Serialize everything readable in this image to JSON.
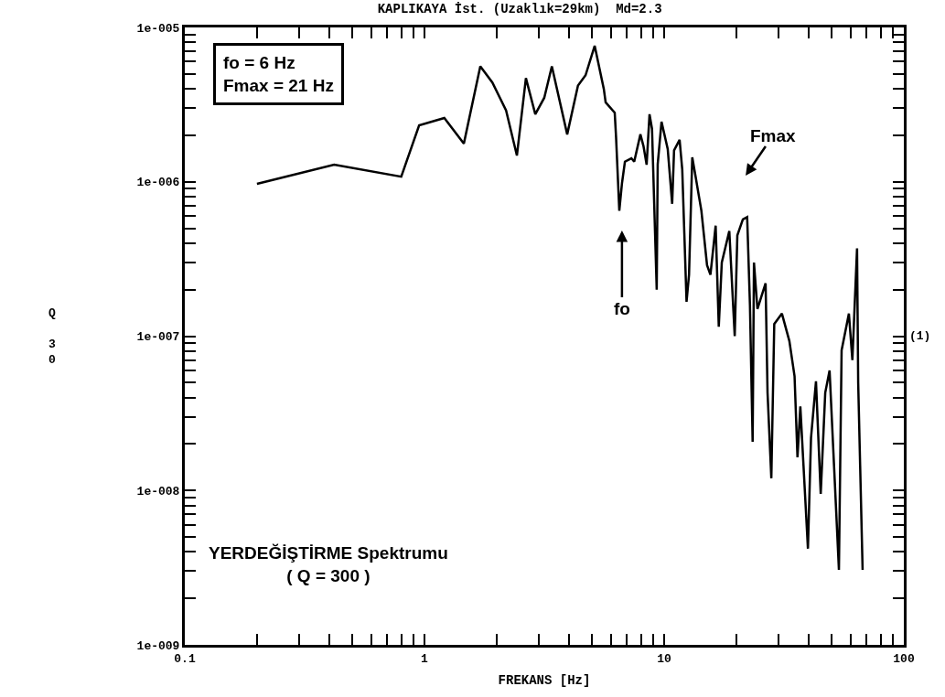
{
  "chart_data": {
    "type": "line",
    "title": "KAPLIKAYA İst. (Uzaklık=29km)  Md=2.3",
    "xlabel": "FREKANS [Hz]",
    "ylabel": "Q 30",
    "y2label": "(1)",
    "log": "xy",
    "grid": false,
    "marker": "none",
    "line_style": "solid",
    "xlim": [
      0.1,
      100
    ],
    "ylim": [
      1e-09,
      1e-05
    ],
    "xticks": [
      0.1,
      {
        "value": 0.2,
        "label": null
      },
      {
        "value": 0.3,
        "label": null
      },
      {
        "value": 0.4,
        "label": null
      },
      {
        "value": 0.5,
        "label": null
      },
      {
        "value": 0.6,
        "label": null
      },
      {
        "value": 0.7,
        "label": null
      },
      {
        "value": 0.8,
        "label": null
      },
      {
        "value": 0.9,
        "label": null
      },
      1,
      {
        "value": 2,
        "label": null
      },
      {
        "value": 3,
        "label": null
      },
      {
        "value": 4,
        "label": null
      },
      {
        "value": 5,
        "label": null
      },
      {
        "value": 6,
        "label": null
      },
      {
        "value": 7,
        "label": null
      },
      {
        "value": 8,
        "label": null
      },
      {
        "value": 9,
        "label": null
      },
      10,
      {
        "value": 20,
        "label": null
      },
      {
        "value": 30,
        "label": null
      },
      {
        "value": 40,
        "label": null
      },
      {
        "value": 50,
        "label": null
      },
      {
        "value": 60,
        "label": null
      },
      {
        "value": 70,
        "label": null
      },
      {
        "value": 80,
        "label": null
      },
      {
        "value": 90,
        "label": null
      },
      100
    ],
    "yticks": [
      {
        "value": 1e-09,
        "label": "1e-009"
      },
      {
        "value": 2e-09,
        "label": null
      },
      {
        "value": 3e-09,
        "label": null
      },
      {
        "value": 4e-09,
        "label": null
      },
      {
        "value": 5e-09,
        "label": null
      },
      {
        "value": 6e-09,
        "label": null
      },
      {
        "value": 7e-09,
        "label": null
      },
      {
        "value": 8e-09,
        "label": null
      },
      {
        "value": 9e-09,
        "label": null
      },
      {
        "value": 1e-08,
        "label": "1e-008"
      },
      {
        "value": 2e-08,
        "label": null
      },
      {
        "value": 3e-08,
        "label": null
      },
      {
        "value": 4e-08,
        "label": null
      },
      {
        "value": 5e-08,
        "label": null
      },
      {
        "value": 6e-08,
        "label": null
      },
      {
        "value": 7e-08,
        "label": null
      },
      {
        "value": 8e-08,
        "label": null
      },
      {
        "value": 9e-08,
        "label": null
      },
      {
        "value": 1e-07,
        "label": "1e-007"
      },
      {
        "value": 2e-07,
        "label": null
      },
      {
        "value": 3e-07,
        "label": null
      },
      {
        "value": 4e-07,
        "label": null
      },
      {
        "value": 5e-07,
        "label": null
      },
      {
        "value": 6e-07,
        "label": null
      },
      {
        "value": 7e-07,
        "label": null
      },
      {
        "value": 8e-07,
        "label": null
      },
      {
        "value": 9e-07,
        "label": null
      },
      {
        "value": 1e-06,
        "label": "1e-006"
      },
      {
        "value": 2e-06,
        "label": null
      },
      {
        "value": 3e-06,
        "label": null
      },
      {
        "value": 4e-06,
        "label": null
      },
      {
        "value": 5e-06,
        "label": null
      },
      {
        "value": 6e-06,
        "label": null
      },
      {
        "value": 7e-06,
        "label": null
      },
      {
        "value": 8e-06,
        "label": null
      },
      {
        "value": 9e-06,
        "label": null
      },
      {
        "value": 1e-05,
        "label": "1e-005"
      }
    ],
    "annotations": [
      "fo = 6 Hz\nFmax = 21 Hz",
      "YERDEĞİŞTİRME Spektrumu\n( Q = 300 )",
      "fo",
      "Fmax"
    ],
    "series": [
      {
        "color": "#000000",
        "x": [
          0.2,
          0.42,
          0.8,
          0.95,
          1.21,
          1.46,
          1.71,
          1.92,
          2.19,
          2.43,
          2.65,
          2.9,
          3.16,
          3.4,
          3.94,
          4.37,
          4.7,
          5.13,
          5.6,
          5.7,
          6.22,
          6.3,
          6.5,
          6.67,
          6.86,
          7.3,
          7.5,
          7.96,
          8.2,
          8.45,
          8.69,
          8.9,
          9.31,
          9.4,
          9.75,
          10.35,
          10.8,
          11.0,
          11.6,
          11.9,
          12.4,
          12.7,
          13.1,
          13.5,
          14.3,
          15.1,
          15.6,
          16.4,
          16.9,
          17.4,
          18.7,
          19.7,
          20.2,
          21.3,
          22.2,
          22.8,
          23.4,
          23.7,
          24.5,
          26.5,
          27,
          28,
          28.8,
          31,
          33.3,
          35,
          36,
          37,
          39.8,
          41,
          43,
          45,
          47,
          49,
          53.6,
          55,
          59,
          61,
          63.8,
          64.5,
          67.3
        ],
        "values": [
          9.7e-07,
          1.29e-06,
          1.08e-06,
          2.32e-06,
          2.59e-06,
          1.77e-06,
          5.6e-06,
          4.4e-06,
          2.9e-06,
          1.48e-06,
          4.7e-06,
          2.74e-06,
          3.5e-06,
          5.6e-06,
          2.03e-06,
          4.2e-06,
          4.9e-06,
          7.6e-06,
          4e-06,
          3.27e-06,
          2.8e-06,
          1.95e-06,
          6.5e-07,
          9.8e-07,
          1.35e-06,
          1.42e-06,
          1.35e-06,
          2.03e-06,
          1.7e-06,
          1.29e-06,
          2.74e-06,
          2.2e-06,
          2e-07,
          1.3e-06,
          2.45e-06,
          1.63e-06,
          7.2e-07,
          1.6e-06,
          1.87e-06,
          1.2e-06,
          1.67e-07,
          2.5e-07,
          1.44e-06,
          1.1e-06,
          6.5e-07,
          2.88e-07,
          2.5e-07,
          5.2e-07,
          1.15e-07,
          3e-07,
          4.8e-07,
          1e-07,
          4.5e-07,
          5.7e-07,
          5.9e-07,
          1.6e-07,
          2.07e-08,
          3e-07,
          1.5e-07,
          2.2e-07,
          4.3e-08,
          1.2e-08,
          1.2e-07,
          1.4e-07,
          9.3e-08,
          5.5e-08,
          1.64e-08,
          3.5e-08,
          4.2e-09,
          2.2e-08,
          5.1e-08,
          9.5e-09,
          4.3e-08,
          6e-08,
          3.06e-09,
          8.1e-08,
          1.4e-07,
          7e-08,
          3.7e-07,
          5e-08,
          3.06e-09
        ]
      }
    ]
  }
}
